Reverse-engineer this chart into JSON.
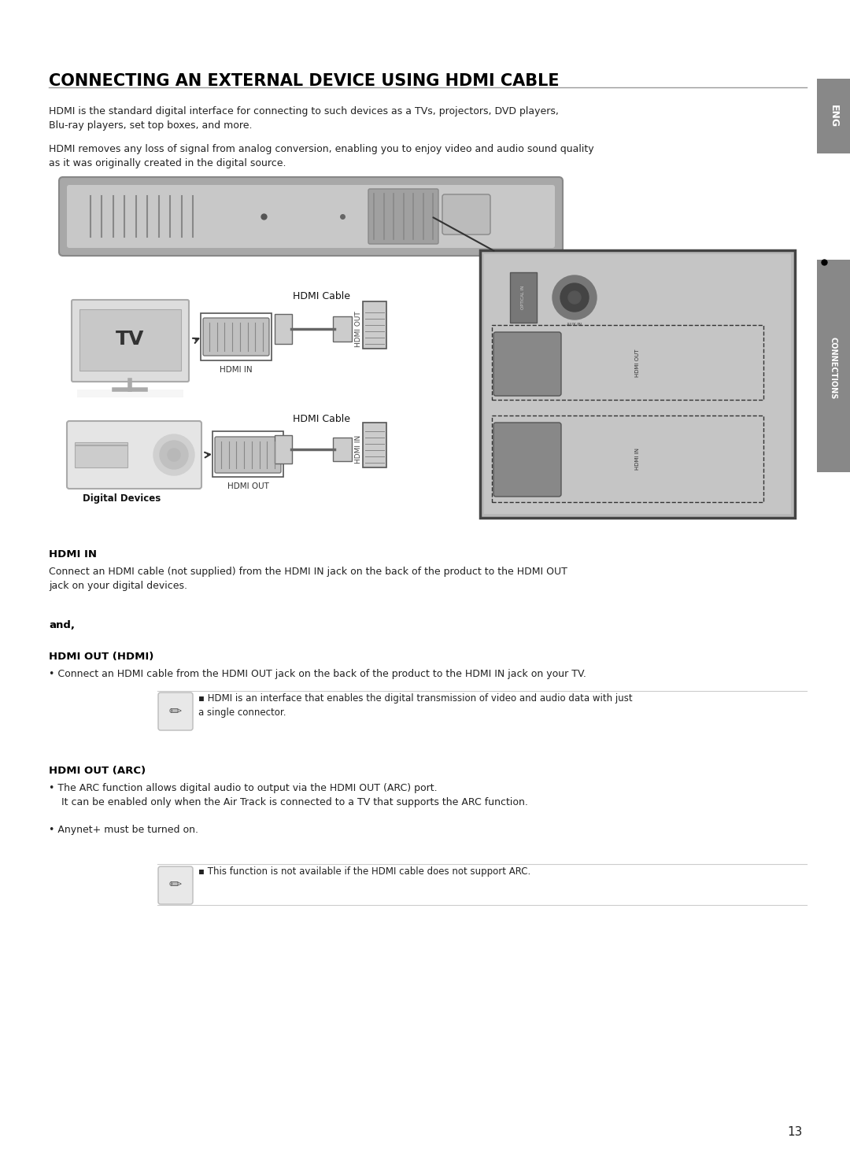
{
  "title": "CONNECTING AN EXTERNAL DEVICE USING HDMI CABLE",
  "intro_text1": "HDMI is the standard digital interface for connecting to such devices as a TVs, projectors, DVD players,\nBlu-ray players, set top boxes, and more.",
  "intro_text2": "HDMI removes any loss of signal from analog conversion, enabling you to enjoy video and audio sound quality\nas it was originally created in the digital source.",
  "section1_title": "HDMI IN",
  "section1_text": "Connect an HDMI cable (not supplied) from the HDMI IN jack on the back of the product to the HDMI OUT\njack on your digital devices.",
  "and_text": "and,",
  "section2_title": "HDMI OUT (HDMI)",
  "section2_bullet": "Connect an HDMI cable from the HDMI OUT jack on the back of the product to the HDMI IN jack on your TV.",
  "note1_text": "HDMI is an interface that enables the digital transmission of video and audio data with just\na single connector.",
  "section3_title": "HDMI OUT (ARC)",
  "section3_bullet1": "The ARC function allows digital audio to output via the HDMI OUT (ARC) port.\n    It can be enabled only when the Air Track is connected to a TV that supports the ARC function.",
  "section3_bullet2": "Anynet+ must be turned on.",
  "note2_text": "This function is not available if the HDMI cable does not support ARC.",
  "page_number": "13",
  "eng_tab": "ENG",
  "connections_tab": "CONNECTIONS",
  "bg_color": "#ffffff",
  "title_color": "#000000",
  "body_color": "#222222",
  "bold_color": "#000000"
}
